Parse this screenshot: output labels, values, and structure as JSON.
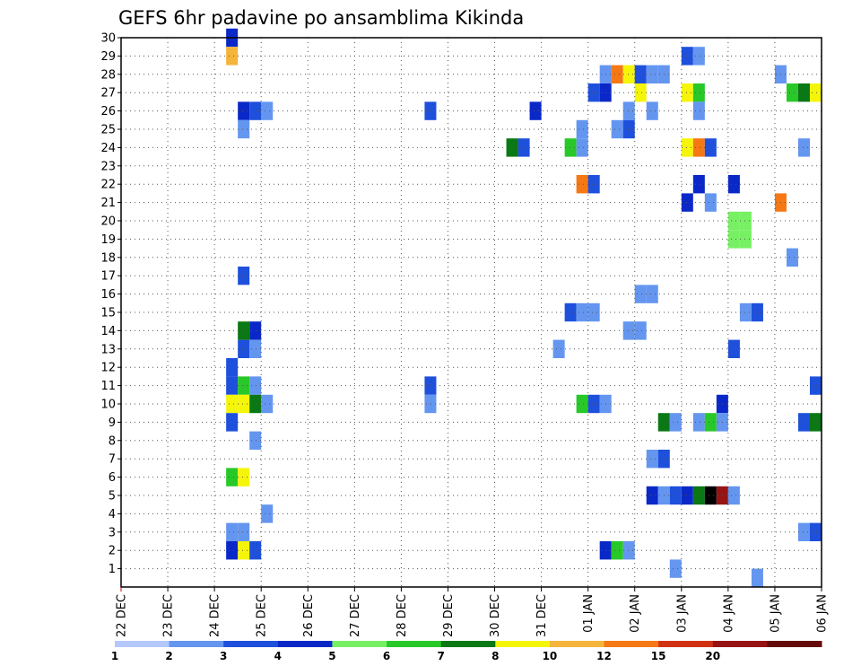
{
  "chart_data": {
    "type": "heatmap",
    "title": "GEFS 6hr padavine po ansamblima Kikinda",
    "y_members": [
      1,
      2,
      3,
      4,
      5,
      6,
      7,
      8,
      9,
      10,
      11,
      12,
      13,
      14,
      15,
      16,
      17,
      18,
      19,
      20,
      21,
      22,
      23,
      24,
      25,
      26,
      27,
      28,
      29,
      30
    ],
    "x_days": [
      "22 DEC",
      "23 DEC",
      "24 DEC",
      "25 DEC",
      "26 DEC",
      "27 DEC",
      "28 DEC",
      "29 DEC",
      "30 DEC",
      "31 DEC",
      "01 JAN",
      "02 JAN",
      "03 JAN",
      "04 JAN",
      "05 JAN",
      "06 JAN"
    ],
    "x_step_unit": "6-hour steps from 22 DEC 00z",
    "x_range": [
      0,
      60
    ],
    "colorbar": {
      "bounds": [
        "1",
        "2",
        "3",
        "4",
        "5",
        "6",
        "7",
        "8",
        "10",
        "12",
        "15",
        "20"
      ],
      "colors": [
        "#b4c8fa",
        "#6496f0",
        "#1e50dc",
        "#0a28c8",
        "#78f064",
        "#28c828",
        "#0a7814",
        "#f5f50a",
        "#f5b43c",
        "#f57814",
        "#d23214",
        "#961414",
        "#640a0a"
      ]
    },
    "cells": [
      [
        9,
        30,
        3
      ],
      [
        9,
        29,
        8
      ],
      [
        41,
        28,
        1
      ],
      [
        42,
        28,
        9
      ],
      [
        43,
        28,
        7
      ],
      [
        44,
        28,
        2
      ],
      [
        45,
        28,
        1
      ],
      [
        46,
        28,
        1
      ],
      [
        56,
        28,
        1
      ],
      [
        40,
        27,
        2
      ],
      [
        41,
        27,
        3
      ],
      [
        44,
        27,
        7
      ],
      [
        48,
        27,
        7
      ],
      [
        49,
        27,
        5
      ],
      [
        57,
        27,
        5
      ],
      [
        58,
        27,
        6
      ],
      [
        59,
        27,
        7
      ],
      [
        48,
        29,
        2
      ],
      [
        49,
        29,
        1
      ],
      [
        10,
        26,
        3
      ],
      [
        11,
        26,
        2
      ],
      [
        12,
        26,
        1
      ],
      [
        26,
        26,
        2
      ],
      [
        35,
        26,
        3
      ],
      [
        43,
        26,
        1
      ],
      [
        45,
        26,
        1
      ],
      [
        49,
        26,
        1
      ],
      [
        10,
        25,
        1
      ],
      [
        39,
        25,
        1
      ],
      [
        42,
        25,
        1
      ],
      [
        43,
        25,
        2
      ],
      [
        33,
        24,
        6
      ],
      [
        34,
        24,
        2
      ],
      [
        38,
        24,
        5
      ],
      [
        39,
        24,
        1
      ],
      [
        48,
        24,
        7
      ],
      [
        49,
        24,
        9
      ],
      [
        50,
        24,
        2
      ],
      [
        58,
        24,
        1
      ],
      [
        39,
        22,
        9
      ],
      [
        40,
        22,
        2
      ],
      [
        49,
        22,
        3
      ],
      [
        52,
        22,
        3
      ],
      [
        48,
        21,
        3
      ],
      [
        50,
        21,
        1
      ],
      [
        56,
        21,
        9
      ],
      [
        52,
        20,
        4
      ],
      [
        53,
        20,
        4
      ],
      [
        52,
        19,
        4
      ],
      [
        53,
        19,
        4
      ],
      [
        57,
        18,
        1
      ],
      [
        10,
        17,
        2
      ],
      [
        44,
        16,
        1
      ],
      [
        45,
        16,
        1
      ],
      [
        38,
        15,
        2
      ],
      [
        39,
        15,
        1
      ],
      [
        40,
        15,
        1
      ],
      [
        53,
        15,
        1
      ],
      [
        54,
        15,
        2
      ],
      [
        10,
        14,
        6
      ],
      [
        11,
        14,
        3
      ],
      [
        43,
        14,
        1
      ],
      [
        44,
        14,
        1
      ],
      [
        10,
        13,
        2
      ],
      [
        11,
        13,
        1
      ],
      [
        37,
        13,
        1
      ],
      [
        52,
        13,
        2
      ],
      [
        9,
        12,
        2
      ],
      [
        26,
        11,
        2
      ],
      [
        9,
        11,
        2
      ],
      [
        10,
        11,
        5
      ],
      [
        11,
        11,
        1
      ],
      [
        59,
        11,
        2
      ],
      [
        9,
        10,
        7
      ],
      [
        10,
        10,
        7
      ],
      [
        11,
        10,
        6
      ],
      [
        12,
        10,
        1
      ],
      [
        26,
        10,
        1
      ],
      [
        39,
        10,
        5
      ],
      [
        40,
        10,
        2
      ],
      [
        41,
        10,
        1
      ],
      [
        51,
        10,
        3
      ],
      [
        9,
        9,
        2
      ],
      [
        46,
        9,
        6
      ],
      [
        47,
        9,
        1
      ],
      [
        49,
        9,
        1
      ],
      [
        50,
        9,
        5
      ],
      [
        51,
        9,
        1
      ],
      [
        58,
        9,
        2
      ],
      [
        59,
        9,
        6
      ],
      [
        11,
        8,
        1
      ],
      [
        45,
        7,
        1
      ],
      [
        46,
        7,
        2
      ],
      [
        9,
        6,
        5
      ],
      [
        10,
        6,
        7
      ],
      [
        45,
        5,
        3
      ],
      [
        46,
        5,
        1
      ],
      [
        47,
        5,
        2
      ],
      [
        48,
        5,
        3
      ],
      [
        49,
        5,
        6
      ],
      [
        50,
        5,
        13
      ],
      [
        51,
        5,
        11
      ],
      [
        52,
        5,
        1
      ],
      [
        12,
        4,
        1
      ],
      [
        9,
        3,
        1
      ],
      [
        10,
        3,
        1
      ],
      [
        58,
        3,
        1
      ],
      [
        59,
        3,
        2
      ],
      [
        9,
        2,
        3
      ],
      [
        10,
        2,
        7
      ],
      [
        11,
        2,
        2
      ],
      [
        41,
        2,
        3
      ],
      [
        42,
        2,
        5
      ],
      [
        43,
        2,
        1
      ],
      [
        47,
        1,
        1
      ],
      [
        54,
        0.5,
        1
      ]
    ]
  }
}
